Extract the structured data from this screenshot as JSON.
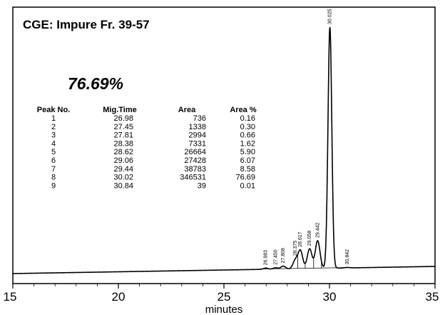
{
  "chart_data": {
    "type": "line",
    "title": "CGE: Impure Fr. 39-57",
    "highlight": "76.69%",
    "xlabel": "minutes",
    "xlim": [
      15,
      35
    ],
    "xticks": [
      "15",
      "20",
      "25",
      "30",
      "35"
    ],
    "peak_labels": [
      {
        "time": 26.98,
        "label": "26.983"
      },
      {
        "time": 27.45,
        "label": "27.450"
      },
      {
        "time": 27.81,
        "label": "27.808"
      },
      {
        "time": 28.38,
        "label": "28.375"
      },
      {
        "time": 28.62,
        "label": "28.617"
      },
      {
        "time": 29.06,
        "label": "29.058"
      },
      {
        "time": 29.44,
        "label": "29.442"
      },
      {
        "time": 30.02,
        "label": "30.025"
      },
      {
        "time": 30.84,
        "label": "30.842"
      }
    ],
    "table": {
      "headers": [
        "Peak No.",
        "Mig.Time",
        "Area",
        "Area %"
      ],
      "rows": [
        [
          "1",
          "26.98",
          "736",
          "0.16"
        ],
        [
          "2",
          "27.45",
          "1338",
          "0.30"
        ],
        [
          "3",
          "27.81",
          "2994",
          "0.66"
        ],
        [
          "4",
          "28.38",
          "7331",
          "1.62"
        ],
        [
          "5",
          "28.62",
          "26664",
          "5.90"
        ],
        [
          "6",
          "29.06",
          "27428",
          "6.07"
        ],
        [
          "7",
          "29.44",
          "38783",
          "8.58"
        ],
        [
          "8",
          "30.02",
          "346531",
          "76.69"
        ],
        [
          "9",
          "30.84",
          "39",
          "0.01"
        ]
      ]
    },
    "peaks": [
      {
        "time": 26.98,
        "height": 0.005
      },
      {
        "time": 27.45,
        "height": 0.006
      },
      {
        "time": 27.81,
        "height": 0.012
      },
      {
        "time": 28.38,
        "height": 0.035
      },
      {
        "time": 28.62,
        "height": 0.075
      },
      {
        "time": 29.06,
        "height": 0.082
      },
      {
        "time": 29.44,
        "height": 0.115
      },
      {
        "time": 30.02,
        "height": 1.0
      },
      {
        "time": 30.84,
        "height": 0.002
      }
    ]
  }
}
